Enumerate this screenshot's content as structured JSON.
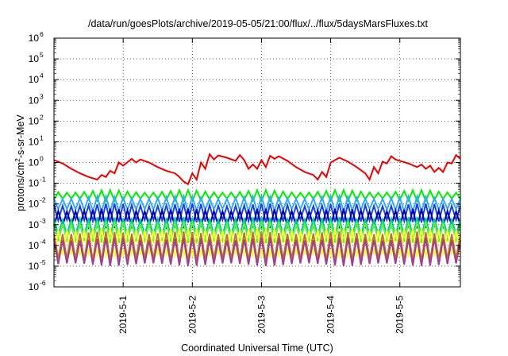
{
  "chart_data": {
    "type": "line",
    "title": "/data/run/goesPlots/archive/2019-05-05/21:00/flux/../flux/5daysMarsFluxes.txt",
    "xlabel": "Coordinated Universal Time (UTC)",
    "ylabel": {
      "base": "protons/cm",
      "sup": "2",
      "rest": "-s-sr-MeV"
    },
    "y_scale": "log",
    "ylim": [
      1e-06,
      1000000.0
    ],
    "y_ticks": [
      {
        "value": 1e-06,
        "base": "10",
        "exp": "-6"
      },
      {
        "value": 1e-05,
        "base": "10",
        "exp": "-5"
      },
      {
        "value": 0.0001,
        "base": "10",
        "exp": "-4"
      },
      {
        "value": 0.001,
        "base": "10",
        "exp": "-3"
      },
      {
        "value": 0.01,
        "base": "10",
        "exp": "-2"
      },
      {
        "value": 0.1,
        "base": "10",
        "exp": "-1"
      },
      {
        "value": 1,
        "base": "10",
        "exp": "0"
      },
      {
        "value": 10,
        "base": "10",
        "exp": "1"
      },
      {
        "value": 100,
        "base": "10",
        "exp": "2"
      },
      {
        "value": 1000,
        "base": "10",
        "exp": "3"
      },
      {
        "value": 10000,
        "base": "10",
        "exp": "4"
      },
      {
        "value": 100000,
        "base": "10",
        "exp": "5"
      },
      {
        "value": 1000000,
        "base": "10",
        "exp": "6"
      }
    ],
    "xlim": [
      "2019-04-30 00:00",
      "2019-05-05 21:00"
    ],
    "x_ticks": [
      {
        "value": "2019-05-01",
        "label": "2019-5-1"
      },
      {
        "value": "2019-05-02",
        "label": "2019-5-2"
      },
      {
        "value": "2019-05-03",
        "label": "2019-5-3"
      },
      {
        "value": "2019-05-04",
        "label": "2019-5-4"
      },
      {
        "value": "2019-05-05",
        "label": "2019-5-5"
      }
    ],
    "grid": true,
    "series": [
      {
        "color": "#ee0000",
        "x": [
          "2019-04-30 00:00",
          "2019-04-30 03:00",
          "2019-04-30 06:00",
          "2019-04-30 09:00",
          "2019-04-30 12:00",
          "2019-04-30 15:00",
          "2019-04-30 16:30",
          "2019-04-30 18:00",
          "2019-04-30 19:30",
          "2019-04-30 21:00",
          "2019-04-30 22:30",
          "2019-05-01 00:00",
          "2019-05-01 03:00",
          "2019-05-01 04:30",
          "2019-05-01 06:00",
          "2019-05-01 09:00",
          "2019-05-01 12:00",
          "2019-05-01 15:00",
          "2019-05-01 18:00",
          "2019-05-01 19:30",
          "2019-05-01 21:00",
          "2019-05-01 22:30",
          "2019-05-02 00:00",
          "2019-05-02 01:30",
          "2019-05-02 03:00",
          "2019-05-02 04:30",
          "2019-05-02 06:00",
          "2019-05-02 07:30",
          "2019-05-02 09:00",
          "2019-05-02 12:00",
          "2019-05-02 15:00",
          "2019-05-02 16:30",
          "2019-05-02 18:00",
          "2019-05-02 19:30",
          "2019-05-02 21:00",
          "2019-05-02 22:30",
          "2019-05-03 00:00",
          "2019-05-03 01:30",
          "2019-05-03 03:00",
          "2019-05-03 04:30",
          "2019-05-03 06:00",
          "2019-05-03 09:00",
          "2019-05-03 12:00",
          "2019-05-03 15:00",
          "2019-05-03 18:00",
          "2019-05-03 19:30",
          "2019-05-03 21:00",
          "2019-05-03 22:30",
          "2019-05-04 00:00",
          "2019-05-04 03:00",
          "2019-05-04 06:00",
          "2019-05-04 09:00",
          "2019-05-04 12:00",
          "2019-05-04 13:30",
          "2019-05-04 15:00",
          "2019-05-04 16:30",
          "2019-05-04 18:00",
          "2019-05-04 19:30",
          "2019-05-04 21:00",
          "2019-05-04 22:30",
          "2019-05-05 00:00",
          "2019-05-05 03:00",
          "2019-05-05 06:00",
          "2019-05-05 07:30",
          "2019-05-05 09:00",
          "2019-05-05 10:30",
          "2019-05-05 12:00",
          "2019-05-05 13:30",
          "2019-05-05 15:00",
          "2019-05-05 16:30",
          "2019-05-05 18:00",
          "2019-05-05 19:30",
          "2019-05-05 21:00"
        ],
        "values": [
          1.3,
          0.9,
          0.5,
          0.3,
          0.2,
          0.15,
          0.25,
          0.2,
          0.4,
          0.3,
          1.0,
          0.7,
          1.5,
          1.0,
          1.4,
          1.0,
          0.6,
          0.4,
          0.3,
          0.2,
          0.12,
          0.09,
          0.3,
          0.15,
          1.0,
          0.5,
          2.5,
          1.4,
          2.2,
          1.7,
          1.2,
          2.3,
          1.3,
          0.5,
          0.8,
          0.5,
          1.3,
          0.6,
          2.1,
          1.5,
          2.0,
          1.2,
          0.6,
          0.35,
          0.25,
          0.15,
          0.35,
          0.2,
          1.0,
          1.7,
          1.1,
          0.6,
          0.3,
          0.15,
          0.6,
          0.3,
          1.1,
          0.9,
          2.0,
          1.4,
          1.2,
          0.9,
          0.6,
          0.8,
          0.5,
          0.7,
          0.35,
          0.55,
          0.35,
          1.0,
          0.9,
          2.3,
          1.5
        ]
      },
      {
        "color": "#00ee00",
        "min": 0.016,
        "max": 0.04
      },
      {
        "color": "#33aaff",
        "min": 0.005,
        "max": 0.02
      },
      {
        "color": "#1a44dd",
        "min": 0.0015,
        "max": 0.009
      },
      {
        "color": "#0000aa",
        "min": 0.0008,
        "max": 0.005
      },
      {
        "color": "#00cc99",
        "min": 0.0003,
        "max": 0.002
      },
      {
        "color": "#66ee44",
        "min": 0.00015,
        "max": 0.0012
      },
      {
        "color": "#ffff33",
        "min": 3e-05,
        "max": 0.0006
      },
      {
        "color": "#bb7722",
        "min": 2e-05,
        "max": 0.0004
      },
      {
        "color": "#a0408f",
        "min": 1.2e-05,
        "max": 0.0002
      }
    ]
  }
}
